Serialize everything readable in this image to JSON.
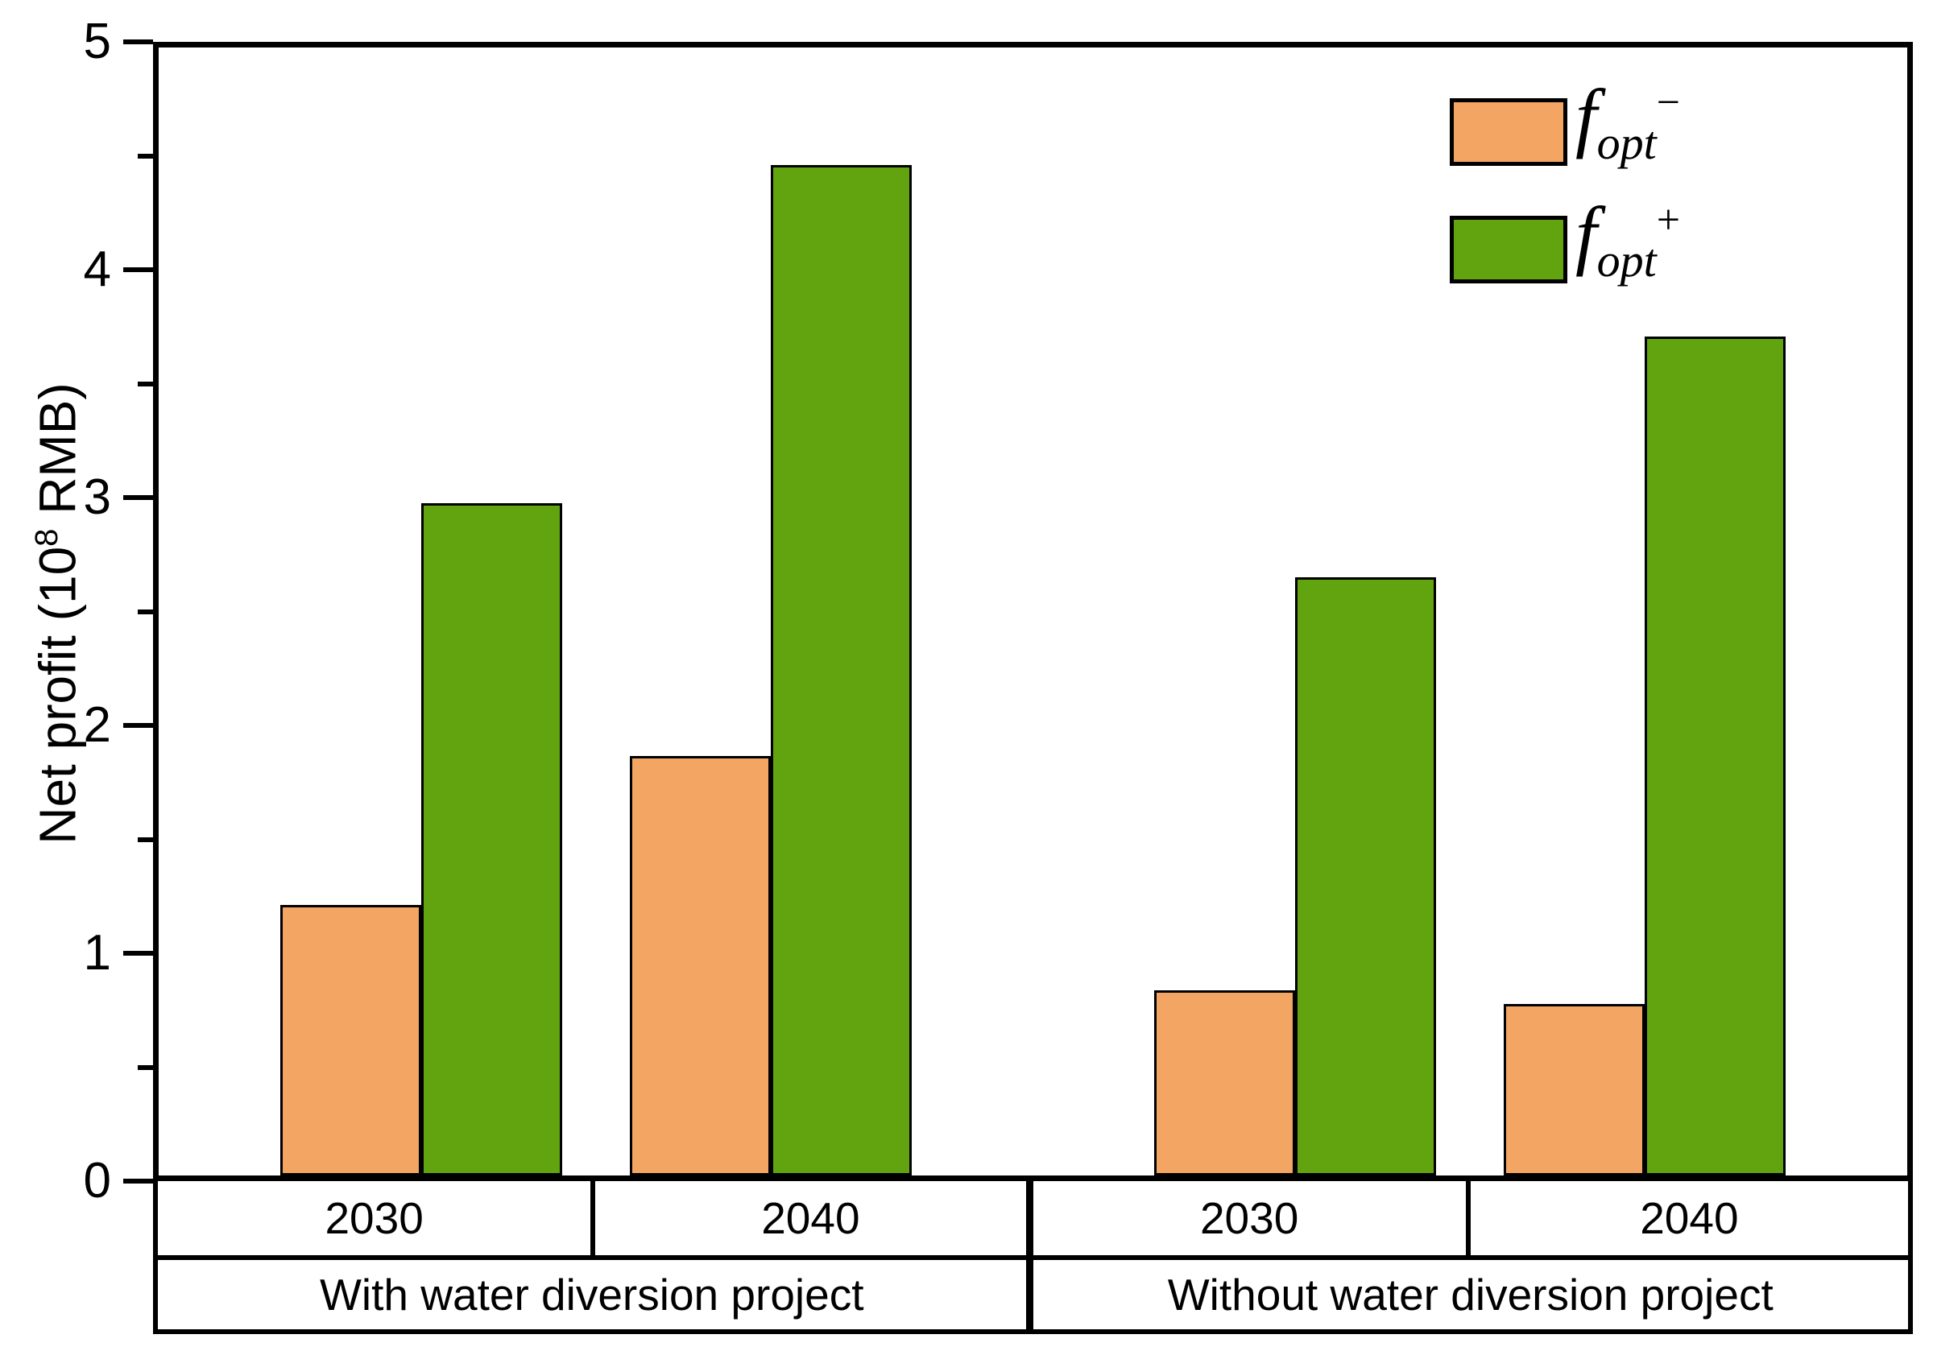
{
  "figure": {
    "background": "#ffffff",
    "axis_color": "#000000"
  },
  "y_axis": {
    "label_prefix": "Net profit (10",
    "label_superscript": "8",
    "label_suffix": " RMB)",
    "min": 0,
    "max": 5,
    "major_step": 1,
    "minor_step": 0.5
  },
  "x_axis": {
    "year_labels": [
      "2030",
      "2040",
      "2030",
      "2040"
    ],
    "project_labels": [
      "With water diversion project",
      "Without water diversion project"
    ]
  },
  "legend": {
    "position": "top-right",
    "entries": [
      {
        "base": "f",
        "sub": "opt",
        "sup": "−",
        "color": "#F3A664"
      },
      {
        "base": "f",
        "sub": "opt",
        "sup": "+",
        "color": "#62A310"
      }
    ]
  },
  "chart_data": {
    "type": "bar",
    "title": "",
    "ylabel": "Net profit (10^8 RMB)",
    "ylim": [
      0,
      5
    ],
    "yticks": [
      0,
      1,
      2,
      3,
      4,
      5
    ],
    "minor_yticks": [
      0.5,
      1.5,
      2.5,
      3.5,
      4.5
    ],
    "grid": false,
    "legend_position": "top-right",
    "groups": [
      {
        "year": "2030",
        "project": "With water diversion project"
      },
      {
        "year": "2040",
        "project": "With water diversion project"
      },
      {
        "year": "2030",
        "project": "Without water diversion project"
      },
      {
        "year": "2040",
        "project": "Without water diversion project"
      }
    ],
    "series": [
      {
        "name": "f_opt−",
        "color": "#F3A664",
        "values": [
          1.2,
          1.86,
          0.82,
          0.76
        ]
      },
      {
        "name": "f_opt+",
        "color": "#62A310",
        "values": [
          2.98,
          4.48,
          2.65,
          3.72
        ]
      }
    ],
    "layout": {
      "group_centers_pct": [
        15,
        35,
        65,
        85
      ],
      "bar_width_pct": 8.06,
      "series_keys": [
        "fopt-minus",
        "fopt-plus"
      ],
      "group_keys": [
        "with-2030",
        "with-2040",
        "without-2030",
        "without-2040"
      ]
    }
  }
}
